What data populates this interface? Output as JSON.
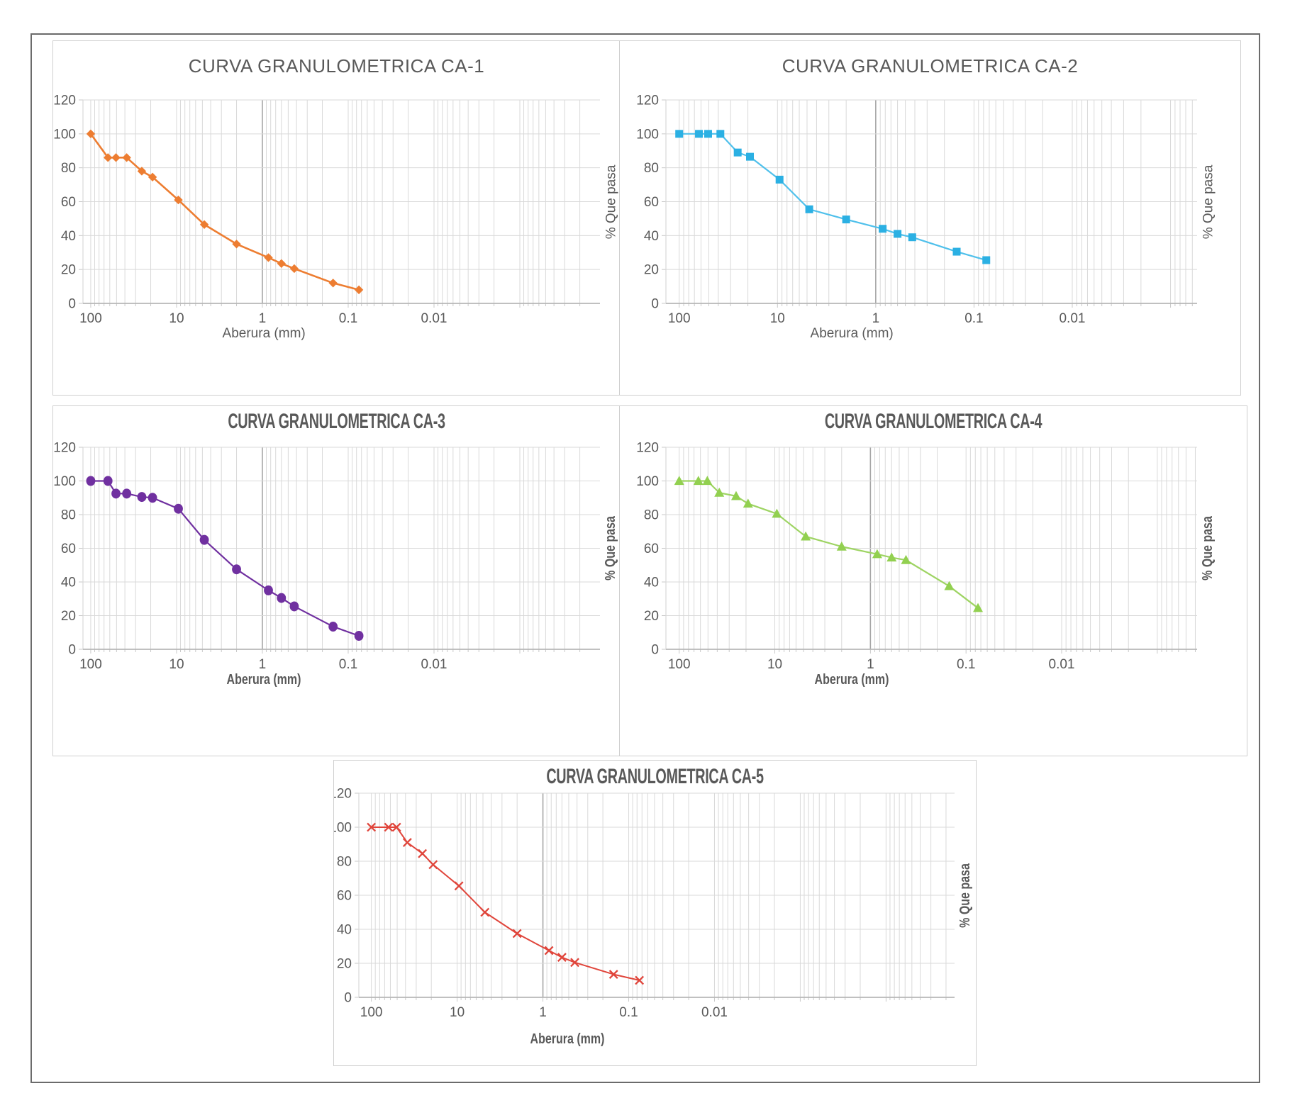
{
  "page": {
    "background": "#ffffff",
    "border_color": "#6b6b6b",
    "panel_border_color": "#cfcfcf"
  },
  "axis_style": {
    "grid_color": "#d9d9d9",
    "grid_dark_color": "#a6a6a6",
    "axis_line_color": "#b7b7b7",
    "tick_color": "#c9c9c9",
    "text_color": "#595959",
    "x_tick_labels": [
      "100",
      "10",
      "1",
      "0.1",
      "0.01"
    ],
    "y_tick_labels": [
      "120",
      "100",
      "80",
      "60",
      "40",
      "20",
      "0"
    ]
  },
  "chart_data": [
    {
      "type": "line",
      "title": "CURVA GRANULOMETRICA CA-1",
      "xlabel": "Aberura (mm)",
      "ylabel": "% Que pasa",
      "xscale": "log-reversed",
      "ylim": [
        0,
        120
      ],
      "x_tick_values": [
        100,
        10,
        1,
        0.1,
        0.01
      ],
      "marker": "diamond",
      "color": "#ED7D31",
      "line_color": "#ED7D31",
      "x": [
        100,
        63,
        50.8,
        38.1,
        25.4,
        19.05,
        9.525,
        4.75,
        2,
        0.85,
        0.6,
        0.425,
        0.15,
        0.075
      ],
      "values": [
        100,
        86,
        86,
        86,
        78,
        74.5,
        61,
        46.5,
        35,
        27,
        23.5,
        20.5,
        12,
        8
      ]
    },
    {
      "type": "line",
      "title": "CURVA GRANULOMETRICA CA-2",
      "xlabel": "Aberura (mm)",
      "ylabel": "% Que pasa",
      "xscale": "log-reversed",
      "ylim": [
        0,
        120
      ],
      "x_tick_values": [
        100,
        10,
        1,
        0.1,
        0.01
      ],
      "marker": "square",
      "color": "#2BB0E3",
      "line_color": "#4FC0EB",
      "x": [
        100,
        63,
        50.8,
        38.1,
        25.4,
        19.05,
        9.525,
        4.75,
        2,
        0.85,
        0.6,
        0.425,
        0.15,
        0.075
      ],
      "values": [
        100,
        100,
        100,
        100,
        89,
        86.5,
        73,
        55.5,
        49.5,
        44,
        41,
        39,
        30.5,
        25.5
      ]
    },
    {
      "type": "line",
      "title": "CURVA GRANULOMETRICA CA-3",
      "xlabel": "Aberura (mm)",
      "ylabel": "% Que pasa",
      "xscale": "log-reversed",
      "ylim": [
        0,
        120
      ],
      "x_tick_values": [
        100,
        10,
        1,
        0.1,
        0.01
      ],
      "marker": "circle",
      "color": "#7030A0",
      "line_color": "#7030A0",
      "x": [
        100,
        63,
        50.8,
        38.1,
        25.4,
        19.05,
        9.525,
        4.75,
        2,
        0.85,
        0.6,
        0.425,
        0.15,
        0.075
      ],
      "values": [
        100,
        100,
        92.5,
        92.5,
        90.5,
        90,
        83.5,
        65,
        47.5,
        35,
        30.5,
        25.5,
        13.5,
        8
      ]
    },
    {
      "type": "line",
      "title": "CURVA GRANULOMETRICA CA-4",
      "xlabel": "Aberura (mm)",
      "ylabel": "% Que pasa",
      "xscale": "log-reversed",
      "ylim": [
        0,
        120
      ],
      "x_tick_values": [
        100,
        10,
        1,
        0.1,
        0.01
      ],
      "marker": "triangle",
      "color": "#92D050",
      "line_color": "#9ED463",
      "x": [
        100,
        63,
        50.8,
        38.1,
        25.4,
        19.05,
        9.525,
        4.75,
        2,
        0.85,
        0.6,
        0.425,
        0.15,
        0.075
      ],
      "values": [
        100,
        100,
        100,
        93,
        91,
        86.5,
        80.5,
        67,
        61,
        56.5,
        54.5,
        53,
        37.5,
        24.5
      ]
    },
    {
      "type": "line",
      "title": "CURVA GRANULOMETRICA CA-5",
      "xlabel": "Aberura (mm)",
      "ylabel": "% Que pasa",
      "xscale": "log-reversed",
      "ylim": [
        0,
        120
      ],
      "x_tick_values": [
        100,
        10,
        1,
        0.1,
        0.01
      ],
      "marker": "x",
      "color": "#E0453B",
      "line_color": "#E0453B",
      "x": [
        100,
        63,
        50.8,
        38.1,
        25.4,
        19.05,
        9.525,
        4.75,
        2,
        0.85,
        0.6,
        0.425,
        0.15,
        0.075
      ],
      "values": [
        100,
        100,
        100,
        91,
        84.5,
        78,
        65.5,
        50,
        37.5,
        27.5,
        23.5,
        20.5,
        13.5,
        10
      ]
    }
  ]
}
